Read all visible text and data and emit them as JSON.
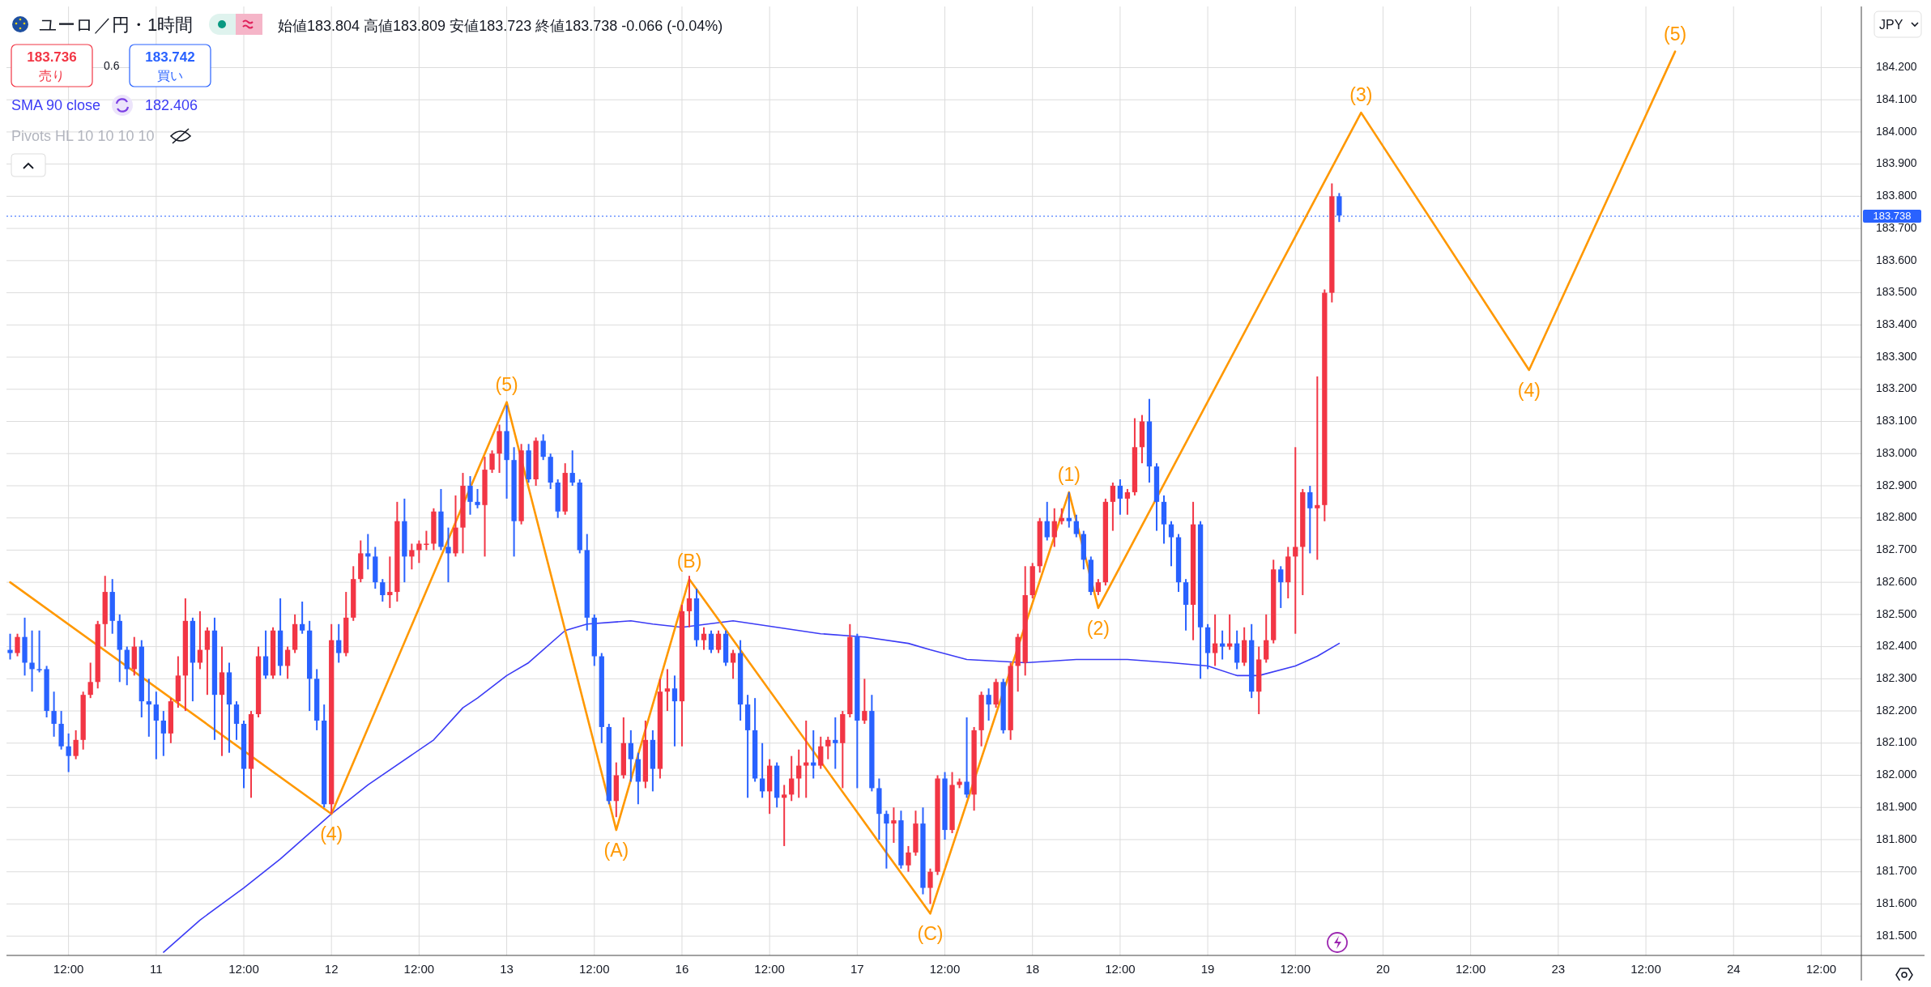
{
  "chart_data": {
    "type": "candlestick",
    "title": "ユーロ／円・1時間",
    "subtitle": "始値183.804 高値183.809 安値183.723 終値183.738 -0.066 (-0.04%)",
    "categories": [
      null,
      null,
      null,
      null,
      null,
      null,
      null,
      null,
      "12:00",
      null,
      null,
      null,
      null,
      null,
      null,
      null,
      null,
      null,
      null,
      null,
      "11",
      null,
      null,
      null,
      null,
      null,
      null,
      null,
      null,
      null,
      null,
      null,
      "12:00",
      null,
      null,
      null,
      null,
      null,
      null,
      null,
      null,
      null,
      null,
      null,
      "12",
      null,
      null,
      null,
      null,
      null,
      null,
      null,
      null,
      null,
      null,
      null,
      "12:00",
      null,
      null,
      null,
      null,
      null,
      null,
      null,
      null,
      null,
      null,
      null,
      "13",
      null,
      null,
      null,
      null,
      null,
      null,
      null,
      null,
      null,
      null,
      null,
      "12:00",
      null,
      null,
      null,
      null,
      null,
      null,
      null,
      null,
      null,
      null,
      null,
      "16",
      null,
      null,
      null,
      null,
      null,
      null,
      null,
      null,
      null,
      null,
      null,
      "12:00",
      null,
      null,
      null,
      null,
      null,
      null,
      null,
      null,
      null,
      null,
      null,
      "17",
      null,
      null,
      null,
      null,
      null,
      null,
      null,
      null,
      null,
      null,
      null,
      "12:00",
      null,
      null,
      null,
      null,
      null,
      null,
      null,
      null,
      null,
      null,
      null,
      "18",
      null,
      null,
      null,
      null,
      null,
      null,
      null,
      null,
      null,
      null,
      null,
      "12:00",
      null,
      null,
      null,
      null,
      null,
      null,
      null,
      null,
      null,
      null,
      null,
      "19",
      null,
      null,
      null,
      null,
      null,
      null,
      null,
      null,
      null,
      null,
      null,
      "12:00",
      null,
      null,
      null,
      null,
      null,
      null,
      null,
      null,
      null,
      null,
      null,
      "20",
      null,
      null,
      null,
      null,
      null,
      null,
      null,
      null,
      null,
      null,
      null,
      "12:00",
      null,
      null,
      null,
      null,
      null,
      null,
      null,
      null,
      null,
      null,
      null,
      "23",
      null,
      null,
      null,
      null,
      null,
      null,
      null,
      null,
      null,
      null,
      null,
      "12:00",
      null,
      null,
      null,
      null,
      null,
      null,
      null,
      null,
      null,
      null,
      null,
      "24",
      null,
      null,
      null,
      null,
      null,
      null,
      null,
      null,
      null,
      null,
      null,
      "12:00",
      null,
      null,
      null,
      null,
      null
    ],
    "ohlc": [
      [
        182.39,
        182.44,
        182.36,
        182.38
      ],
      [
        182.38,
        182.44,
        182.37,
        182.43
      ],
      [
        182.43,
        182.49,
        182.31,
        182.35
      ],
      [
        182.35,
        182.45,
        182.26,
        182.33
      ],
      [
        182.33,
        182.45,
        182.32,
        182.33
      ],
      [
        182.33,
        182.34,
        182.18,
        182.2
      ],
      [
        182.2,
        182.26,
        182.12,
        182.16
      ],
      [
        182.16,
        182.2,
        182.08,
        182.09
      ],
      [
        182.09,
        182.13,
        182.01,
        182.06
      ],
      [
        182.06,
        182.14,
        182.05,
        182.11
      ],
      [
        182.11,
        182.26,
        182.08,
        182.25
      ],
      [
        182.25,
        182.35,
        182.24,
        182.29
      ],
      [
        182.29,
        182.48,
        182.27,
        182.47
      ],
      [
        182.47,
        182.62,
        182.4,
        182.57
      ],
      [
        182.57,
        182.61,
        182.44,
        182.48
      ],
      [
        182.48,
        182.5,
        182.29,
        182.39
      ],
      [
        182.39,
        182.4,
        182.28,
        182.33
      ],
      [
        182.33,
        182.43,
        182.31,
        182.4
      ],
      [
        182.4,
        182.42,
        182.18,
        182.23
      ],
      [
        182.23,
        182.3,
        182.12,
        182.22
      ],
      [
        182.22,
        182.26,
        182.05,
        182.17
      ],
      [
        182.17,
        182.2,
        182.06,
        182.13
      ],
      [
        182.13,
        182.24,
        182.1,
        182.23
      ],
      [
        182.23,
        182.37,
        182.21,
        182.31
      ],
      [
        182.31,
        182.55,
        182.2,
        182.48
      ],
      [
        182.48,
        182.49,
        182.23,
        182.35
      ],
      [
        182.35,
        182.51,
        182.33,
        182.39
      ],
      [
        182.39,
        182.46,
        182.25,
        182.45
      ],
      [
        182.45,
        182.49,
        182.11,
        182.25
      ],
      [
        182.25,
        182.4,
        182.06,
        182.32
      ],
      [
        182.32,
        182.35,
        182.07,
        182.22
      ],
      [
        182.22,
        182.23,
        182.11,
        182.16
      ],
      [
        182.16,
        182.17,
        181.96,
        182.02
      ],
      [
        182.02,
        182.2,
        181.93,
        182.19
      ],
      [
        182.19,
        182.4,
        182.18,
        182.37
      ],
      [
        182.37,
        182.45,
        182.3,
        182.31
      ],
      [
        182.31,
        182.46,
        182.3,
        182.45
      ],
      [
        182.45,
        182.55,
        182.31,
        182.34
      ],
      [
        182.34,
        182.4,
        182.3,
        182.39
      ],
      [
        182.39,
        182.5,
        182.38,
        182.47
      ],
      [
        182.47,
        182.54,
        182.44,
        182.45
      ],
      [
        182.45,
        182.48,
        182.2,
        182.3
      ],
      [
        182.3,
        182.33,
        182.14,
        182.17
      ],
      [
        182.17,
        182.22,
        181.9,
        181.91
      ],
      [
        181.91,
        182.47,
        181.88,
        182.42
      ],
      [
        182.42,
        182.47,
        182.35,
        182.38
      ],
      [
        182.38,
        182.57,
        182.37,
        182.49
      ],
      [
        182.49,
        182.65,
        182.48,
        182.61
      ],
      [
        182.61,
        182.73,
        182.6,
        182.69
      ],
      [
        182.69,
        182.75,
        182.64,
        182.68
      ],
      [
        182.68,
        182.71,
        182.58,
        182.6
      ],
      [
        182.6,
        182.61,
        182.54,
        182.56
      ],
      [
        182.56,
        182.68,
        182.52,
        182.57
      ],
      [
        182.57,
        182.85,
        182.54,
        182.79
      ],
      [
        182.79,
        182.86,
        182.6,
        182.68
      ],
      [
        182.68,
        182.72,
        182.64,
        182.7
      ],
      [
        182.7,
        182.73,
        182.66,
        182.72
      ],
      [
        182.72,
        182.76,
        182.7,
        182.72
      ],
      [
        182.72,
        182.83,
        182.7,
        182.82
      ],
      [
        182.82,
        182.89,
        182.7,
        182.71
      ],
      [
        182.71,
        182.77,
        182.6,
        182.69
      ],
      [
        182.69,
        182.87,
        182.68,
        182.77
      ],
      [
        182.77,
        182.94,
        182.69,
        182.9
      ],
      [
        182.9,
        182.93,
        182.81,
        182.85
      ],
      [
        182.85,
        182.89,
        182.83,
        182.84
      ],
      [
        182.84,
        182.99,
        182.68,
        182.95
      ],
      [
        182.95,
        183.01,
        182.94,
        183.0
      ],
      [
        183.0,
        183.09,
        182.94,
        183.07
      ],
      [
        183.07,
        183.15,
        182.86,
        182.98
      ],
      [
        182.98,
        183.02,
        182.68,
        182.79
      ],
      [
        182.79,
        183.03,
        182.78,
        183.01
      ],
      [
        183.01,
        183.03,
        182.91,
        182.92
      ],
      [
        182.92,
        183.05,
        182.9,
        183.04
      ],
      [
        183.04,
        183.06,
        182.98,
        182.99
      ],
      [
        182.99,
        183.0,
        182.89,
        182.91
      ],
      [
        182.91,
        182.92,
        182.8,
        182.82
      ],
      [
        182.82,
        182.97,
        182.81,
        182.94
      ],
      [
        182.94,
        183.01,
        182.9,
        182.91
      ],
      [
        182.91,
        182.92,
        182.69,
        182.7
      ],
      [
        182.7,
        182.75,
        182.45,
        182.49
      ],
      [
        182.49,
        182.5,
        182.34,
        182.37
      ],
      [
        182.37,
        182.38,
        182.1,
        182.15
      ],
      [
        182.15,
        182.16,
        181.91,
        181.92
      ],
      [
        181.92,
        182.04,
        181.87,
        182.0
      ],
      [
        182.0,
        182.18,
        181.99,
        182.1
      ],
      [
        182.1,
        182.14,
        181.98,
        182.05
      ],
      [
        182.05,
        182.07,
        181.91,
        181.98
      ],
      [
        181.98,
        182.17,
        181.96,
        182.11
      ],
      [
        182.11,
        182.14,
        181.95,
        182.02
      ],
      [
        182.02,
        182.3,
        181.99,
        182.26
      ],
      [
        182.26,
        182.33,
        182.2,
        182.27
      ],
      [
        182.27,
        182.31,
        182.09,
        182.23
      ],
      [
        182.23,
        182.53,
        182.09,
        182.51
      ],
      [
        182.51,
        182.62,
        182.46,
        182.55
      ],
      [
        182.55,
        182.58,
        182.4,
        182.42
      ],
      [
        182.42,
        182.46,
        182.39,
        182.44
      ],
      [
        182.44,
        182.45,
        182.38,
        182.39
      ],
      [
        182.39,
        182.45,
        182.38,
        182.44
      ],
      [
        182.44,
        182.45,
        182.34,
        182.35
      ],
      [
        182.35,
        182.39,
        182.3,
        182.38
      ],
      [
        182.38,
        182.42,
        182.17,
        182.22
      ],
      [
        182.22,
        182.25,
        181.93,
        182.14
      ],
      [
        182.14,
        182.24,
        181.98,
        181.99
      ],
      [
        181.99,
        182.1,
        181.93,
        181.95
      ],
      [
        181.95,
        182.05,
        181.88,
        182.03
      ],
      [
        182.03,
        182.04,
        181.9,
        181.93
      ],
      [
        181.93,
        181.97,
        181.78,
        181.94
      ],
      [
        181.94,
        182.06,
        181.92,
        181.99
      ],
      [
        181.99,
        182.08,
        181.93,
        182.03
      ],
      [
        182.03,
        182.17,
        181.93,
        182.04
      ],
      [
        182.04,
        182.14,
        181.99,
        182.03
      ],
      [
        182.03,
        182.12,
        182.02,
        182.09
      ],
      [
        182.09,
        182.12,
        182.05,
        182.11
      ],
      [
        182.11,
        182.18,
        182.02,
        182.1
      ],
      [
        182.1,
        182.2,
        181.96,
        182.19
      ],
      [
        182.19,
        182.47,
        182.18,
        182.43
      ],
      [
        182.43,
        182.44,
        181.96,
        182.17
      ],
      [
        182.17,
        182.3,
        182.16,
        182.2
      ],
      [
        182.2,
        182.25,
        181.95,
        181.96
      ],
      [
        181.96,
        181.99,
        181.8,
        181.88
      ],
      [
        181.88,
        181.89,
        181.71,
        181.85
      ],
      [
        181.85,
        181.9,
        181.79,
        181.86
      ],
      [
        181.86,
        181.89,
        181.71,
        181.72
      ],
      [
        181.72,
        181.78,
        181.7,
        181.76
      ],
      [
        181.76,
        181.89,
        181.75,
        181.85
      ],
      [
        181.85,
        181.9,
        181.63,
        181.65
      ],
      [
        181.65,
        181.71,
        181.6,
        181.7
      ],
      [
        181.7,
        182.0,
        181.69,
        181.99
      ],
      [
        181.99,
        182.01,
        181.8,
        181.83
      ],
      [
        181.83,
        182.01,
        181.82,
        181.97
      ],
      [
        181.97,
        181.99,
        181.96,
        181.98
      ],
      [
        181.98,
        182.18,
        181.93,
        181.94
      ],
      [
        181.94,
        182.15,
        181.89,
        182.14
      ],
      [
        182.14,
        182.26,
        182.09,
        182.25
      ],
      [
        182.25,
        182.27,
        182.17,
        182.22
      ],
      [
        182.22,
        182.3,
        182.21,
        182.29
      ],
      [
        182.29,
        182.3,
        182.13,
        182.14
      ],
      [
        182.14,
        182.35,
        182.11,
        182.34
      ],
      [
        182.34,
        182.44,
        182.26,
        182.43
      ],
      [
        182.35,
        182.65,
        182.31,
        182.56
      ],
      [
        182.56,
        182.66,
        182.55,
        182.65
      ],
      [
        182.65,
        182.8,
        182.63,
        182.79
      ],
      [
        182.79,
        182.85,
        182.73,
        182.74
      ],
      [
        182.74,
        182.83,
        182.71,
        182.79
      ],
      [
        182.79,
        182.83,
        182.78,
        182.8
      ],
      [
        182.8,
        182.88,
        182.77,
        182.79
      ],
      [
        182.79,
        182.81,
        182.74,
        182.75
      ],
      [
        182.75,
        182.76,
        182.64,
        182.67
      ],
      [
        182.67,
        182.68,
        182.56,
        182.57
      ],
      [
        182.57,
        182.61,
        182.56,
        182.6
      ],
      [
        182.6,
        182.86,
        182.59,
        182.85
      ],
      [
        182.85,
        182.91,
        182.76,
        182.9
      ],
      [
        182.9,
        182.92,
        182.81,
        182.86
      ],
      [
        182.86,
        182.89,
        182.81,
        182.88
      ],
      [
        182.88,
        183.11,
        182.87,
        183.02
      ],
      [
        183.02,
        183.12,
        182.97,
        183.1
      ],
      [
        183.1,
        183.17,
        182.91,
        182.96
      ],
      [
        182.96,
        182.97,
        182.76,
        182.85
      ],
      [
        182.85,
        182.87,
        182.72,
        182.78
      ],
      [
        182.78,
        182.79,
        182.65,
        182.74
      ],
      [
        182.74,
        182.75,
        182.57,
        182.6
      ],
      [
        182.6,
        182.61,
        182.45,
        182.53
      ],
      [
        182.53,
        182.85,
        182.42,
        182.78
      ],
      [
        182.78,
        182.79,
        182.3,
        182.46
      ],
      [
        182.46,
        182.47,
        182.33,
        182.38
      ],
      [
        182.38,
        182.5,
        182.34,
        182.41
      ],
      [
        182.41,
        182.45,
        182.36,
        182.4
      ],
      [
        182.4,
        182.5,
        182.39,
        182.41
      ],
      [
        182.41,
        182.45,
        182.33,
        182.35
      ],
      [
        182.35,
        182.46,
        182.34,
        182.42
      ],
      [
        182.42,
        182.47,
        182.24,
        182.26
      ],
      [
        182.26,
        182.4,
        182.19,
        182.36
      ],
      [
        182.36,
        182.5,
        182.35,
        182.42
      ],
      [
        182.42,
        182.67,
        182.41,
        182.64
      ],
      [
        182.64,
        182.65,
        182.52,
        182.6
      ],
      [
        182.6,
        182.71,
        182.55,
        182.68
      ],
      [
        182.68,
        183.02,
        182.44,
        182.71
      ],
      [
        182.71,
        182.89,
        182.56,
        182.88
      ],
      [
        182.88,
        182.9,
        182.69,
        182.83
      ],
      [
        182.83,
        183.24,
        182.67,
        182.84
      ],
      [
        182.84,
        183.51,
        182.79,
        183.5
      ],
      [
        183.5,
        183.84,
        183.47,
        183.8
      ],
      [
        183.8,
        183.81,
        183.72,
        183.74
      ],
      null,
      null,
      null,
      null,
      null,
      null,
      null,
      null,
      null,
      null,
      null,
      null,
      null,
      null,
      null,
      null,
      null,
      null,
      null,
      null,
      null,
      null,
      null,
      null,
      null,
      null,
      null,
      null,
      null,
      null,
      null,
      null,
      null,
      null,
      null,
      null,
      null,
      null,
      null,
      null,
      null,
      null,
      null,
      null,
      null,
      null,
      null,
      null,
      null,
      null,
      null,
      null,
      null,
      null,
      null,
      null,
      null,
      null,
      null,
      null,
      null,
      null,
      null,
      null,
      null,
      null,
      null,
      null,
      null,
      null,
      null
    ],
    "colors": [
      "#2962ff",
      "#f23645",
      "#2962ff",
      "#2962ff",
      "#2962ff",
      "#2962ff",
      "#2962ff",
      "#2962ff",
      "#2962ff",
      "#f23645",
      "#f23645",
      "#f23645",
      "#f23645",
      "#f23645",
      "#2962ff",
      "#2962ff",
      "#2962ff",
      "#f23645",
      "#2962ff",
      "#2962ff",
      "#2962ff",
      "#2962ff",
      "#f23645",
      "#f23645",
      "#f23645",
      "#2962ff",
      "#f23645",
      "#f23645",
      "#2962ff",
      "#f23645",
      "#2962ff",
      "#2962ff",
      "#2962ff",
      "#f23645",
      "#f23645",
      "#2962ff",
      "#f23645",
      "#2962ff",
      "#f23645",
      "#f23645",
      "#2962ff",
      "#2962ff",
      "#2962ff",
      "#2962ff",
      "#f23645",
      "#2962ff",
      "#f23645",
      "#f23645",
      "#f23645",
      "#2962ff",
      "#2962ff",
      "#2962ff",
      "#f23645",
      "#f23645",
      "#2962ff",
      "#f23645",
      "#f23645",
      "#f23645",
      "#f23645",
      "#2962ff",
      "#2962ff",
      "#f23645",
      "#f23645",
      "#2962ff",
      "#2962ff",
      "#f23645",
      "#f23645",
      "#f23645",
      "#2962ff",
      "#2962ff",
      "#f23645",
      "#2962ff",
      "#f23645",
      "#2962ff",
      "#2962ff",
      "#2962ff",
      "#f23645",
      "#2962ff",
      "#2962ff",
      "#2962ff",
      "#2962ff",
      "#2962ff",
      "#2962ff",
      "#f23645",
      "#f23645",
      "#2962ff",
      "#2962ff",
      "#f23645",
      "#2962ff",
      "#f23645",
      "#f23645",
      "#2962ff",
      "#f23645",
      "#f23645",
      "#2962ff",
      "#f23645",
      "#2962ff",
      "#f23645",
      "#2962ff",
      "#f23645",
      "#2962ff",
      "#2962ff",
      "#2962ff",
      "#2962ff",
      "#f23645",
      "#2962ff",
      "#f23645",
      "#f23645",
      "#f23645",
      "#f23645",
      "#2962ff",
      "#f23645",
      "#f23645",
      "#2962ff",
      "#f23645",
      "#f23645",
      "#2962ff",
      "#f23645",
      "#2962ff",
      "#2962ff",
      "#2962ff",
      "#f23645",
      "#2962ff",
      "#f23645",
      "#f23645",
      "#2962ff",
      "#f23645",
      "#f23645",
      "#2962ff",
      "#f23645",
      "#f23645",
      "#2962ff",
      "#f23645",
      "#f23645",
      "#2962ff",
      "#f23645",
      "#2962ff",
      "#f23645",
      "#f23645",
      "#f23645",
      "#f23645",
      "#f23645",
      "#2962ff",
      "#f23645",
      "#f23645",
      "#2962ff",
      "#2962ff",
      "#2962ff",
      "#2962ff",
      "#f23645",
      "#f23645",
      "#f23645",
      "#2962ff",
      "#f23645",
      "#f23645",
      "#f23645",
      "#2962ff",
      "#2962ff",
      "#2962ff",
      "#2962ff",
      "#2962ff",
      "#2962ff",
      "#f23645",
      "#2962ff",
      "#2962ff",
      "#f23645",
      "#2962ff",
      "#f23645",
      "#2962ff",
      "#f23645",
      "#2962ff",
      "#f23645",
      "#f23645",
      "#f23645",
      "#2962ff",
      "#f23645",
      "#f23645",
      "#f23645",
      "#2962ff",
      "#f23645",
      "#f23645",
      "#f23645",
      "#2962ff",
      null,
      null,
      null,
      null,
      null,
      null,
      null,
      null,
      null,
      null,
      null,
      null,
      null,
      null,
      null,
      null,
      null,
      null,
      null,
      null,
      null,
      null,
      null,
      null,
      null,
      null,
      null,
      null,
      null,
      null,
      null,
      null,
      null,
      null,
      null,
      null,
      null,
      null,
      null,
      null,
      null,
      null,
      null,
      null,
      null,
      null,
      null,
      null,
      null,
      null,
      null,
      null,
      null,
      null,
      null,
      null,
      null,
      null,
      null,
      null,
      null,
      null,
      null,
      null,
      null,
      null,
      null,
      null,
      null,
      null,
      null
    ],
    "series": [
      {
        "name": "SMA 90 close",
        "type": "line",
        "color": "#3b3bf5",
        "values": [
          null,
          null,
          null,
          null,
          null,
          null,
          null,
          null,
          null,
          null,
          null,
          null,
          null,
          null,
          null,
          null,
          null,
          null,
          null,
          null,
          null,
          181.45,
          null,
          null,
          null,
          null,
          181.55,
          null,
          null,
          null,
          null,
          null,
          181.65,
          null,
          null,
          null,
          null,
          181.74,
          null,
          null,
          null,
          null,
          null,
          null,
          181.88,
          null,
          null,
          null,
          null,
          181.97,
          null,
          null,
          null,
          null,
          null,
          null,
          null,
          null,
          182.11,
          null,
          null,
          null,
          182.21,
          null,
          182.24,
          null,
          null,
          null,
          182.31,
          null,
          null,
          182.35,
          null,
          null,
          null,
          null,
          182.45,
          null,
          null,
          182.47,
          null,
          null,
          null,
          null,
          null,
          182.48,
          null,
          null,
          182.47,
          null,
          null,
          null,
          182.46,
          null,
          null,
          null,
          null,
          null,
          null,
          182.48,
          null,
          null,
          null,
          null,
          null,
          182.46,
          null,
          null,
          null,
          null,
          null,
          182.44,
          null,
          null,
          null,
          null,
          null,
          182.43,
          null,
          null,
          null,
          null,
          null,
          182.41,
          null,
          null,
          182.39,
          null,
          null,
          null,
          null,
          182.36,
          null,
          null,
          null,
          null,
          null,
          null,
          null,
          182.35,
          null,
          null,
          null,
          null,
          null,
          null,
          182.36,
          null,
          null,
          null,
          null,
          null,
          null,
          182.36,
          null,
          null,
          null,
          null,
          null,
          182.35,
          null,
          null,
          null,
          null,
          182.34,
          null,
          null,
          null,
          182.31,
          null,
          null,
          182.31,
          null,
          null,
          null,
          null,
          182.34,
          null,
          null,
          182.37,
          null,
          null,
          182.41,
          null,
          null,
          null,
          null,
          null,
          null,
          null,
          null,
          null,
          null,
          null,
          null,
          null,
          null,
          null,
          null,
          null,
          null,
          null,
          null,
          null,
          null,
          null,
          null,
          null,
          null,
          null,
          null,
          null,
          null,
          null,
          null,
          null,
          null,
          null,
          null,
          null,
          null,
          null,
          null,
          null,
          null,
          null,
          null,
          null,
          null,
          null,
          null,
          null,
          null,
          null,
          null,
          null,
          null,
          null,
          null,
          null,
          null,
          null,
          null,
          null,
          null,
          null,
          null,
          null,
          null,
          null,
          null,
          null,
          null,
          null
        ]
      },
      {
        "type": "line",
        "color": "#ff9800",
        "values": [
          182.6,
          null,
          null,
          null,
          null,
          null,
          null,
          null,
          null,
          null,
          null,
          null,
          null,
          null,
          null,
          null,
          null,
          null,
          null,
          null,
          null,
          null,
          null,
          null,
          null,
          null,
          null,
          null,
          null,
          null,
          null,
          null,
          null,
          null,
          null,
          null,
          null,
          null,
          null,
          null,
          null,
          null,
          null,
          null,
          181.88,
          null,
          null,
          null,
          null,
          null,
          null,
          null,
          null,
          null,
          null,
          null,
          null,
          null,
          null,
          null,
          null,
          null,
          null,
          null,
          null,
          null,
          null,
          null,
          183.16,
          null,
          null,
          null,
          null,
          null,
          null,
          null,
          null,
          null,
          null,
          null,
          null,
          null,
          null,
          181.83,
          null,
          null,
          null,
          null,
          null,
          null,
          null,
          null,
          null,
          182.61,
          null,
          null,
          null,
          null,
          null,
          null,
          null,
          null,
          null,
          null,
          null,
          null,
          null,
          null,
          null,
          null,
          null,
          null,
          null,
          null,
          null,
          null,
          null,
          null,
          null,
          null,
          null,
          null,
          null,
          null,
          null,
          null,
          181.57,
          null,
          null,
          null,
          null,
          null,
          null,
          null,
          null,
          null,
          null,
          null,
          null,
          null,
          null,
          null,
          null,
          null,
          null,
          182.88,
          null,
          null,
          null,
          182.52,
          null,
          null,
          null,
          null,
          null,
          null,
          null,
          null,
          null,
          null,
          null,
          null,
          null,
          null,
          null,
          null,
          null,
          null,
          null,
          null,
          null,
          null,
          null,
          null,
          null,
          null,
          null,
          null,
          null,
          null,
          null,
          null,
          null,
          null,
          null,
          184.06,
          null,
          null,
          null,
          null,
          null,
          null,
          null,
          null,
          null,
          null,
          null,
          null,
          null,
          null,
          null,
          null,
          null,
          null,
          null,
          null,
          null,
          null,
          183.26,
          null,
          null,
          null,
          null,
          null,
          null,
          null,
          null,
          null,
          null,
          null,
          null,
          null,
          null,
          null,
          null,
          null,
          null,
          null,
          184.25,
          null,
          null,
          null,
          null,
          null,
          null,
          null,
          null,
          null,
          null,
          null,
          null,
          null,
          null,
          null,
          null,
          null,
          null,
          null,
          null,
          null,
          null,
          null,
          null,
          null
        ]
      }
    ],
    "ylim": [
      181.44,
      184.39
    ],
    "yticks": [
      {
        "value": 181.5,
        "label": "181.500"
      },
      {
        "value": 181.6,
        "label": "181.600"
      },
      {
        "value": 181.7,
        "label": "181.700"
      },
      {
        "value": 181.8,
        "label": "181.800"
      },
      {
        "value": 181.9,
        "label": "181.900"
      },
      {
        "value": 182.0,
        "label": "182.000"
      },
      {
        "value": 182.1,
        "label": "182.100"
      },
      {
        "value": 182.2,
        "label": "182.200"
      },
      {
        "value": 182.3,
        "label": "182.300"
      },
      {
        "value": 182.4,
        "label": "182.400"
      },
      {
        "value": 182.5,
        "label": "182.500"
      },
      {
        "value": 182.6,
        "label": "182.600"
      },
      {
        "value": 182.7,
        "label": "182.700"
      },
      {
        "value": 182.8,
        "label": "182.800"
      },
      {
        "value": 182.9,
        "label": "182.900"
      },
      {
        "value": 183.0,
        "label": "183.000"
      },
      {
        "value": 183.1,
        "label": "183.100"
      },
      {
        "value": 183.2,
        "label": "183.200"
      },
      {
        "value": 183.3,
        "label": "183.300"
      },
      {
        "value": 183.4,
        "label": "183.400"
      },
      {
        "value": 183.5,
        "label": "183.500"
      },
      {
        "value": 183.6,
        "label": "183.600"
      },
      {
        "value": 183.7,
        "label": "183.700"
      },
      {
        "value": 183.8,
        "label": "183.800"
      },
      {
        "value": 183.9,
        "label": "183.900"
      },
      {
        "value": 184.0,
        "label": "184.000"
      },
      {
        "value": 184.1,
        "label": "184.100"
      },
      {
        "value": 184.2,
        "label": "184.200"
      }
    ],
    "grid": true,
    "ref_lines": [
      {
        "axis": "y",
        "value": 183.738,
        "label": "183.738",
        "color": "#2962ff",
        "line_style": "dotted"
      }
    ],
    "annotations": [
      "183.736",
      "売り",
      "0.6",
      "183.742",
      "買い",
      "182.406",
      "Pivots HL 10 10 10 10",
      "JPY",
      {
        "text": "(4)",
        "y": 181.88
      },
      {
        "text": "(5)",
        "y": 183.16
      },
      {
        "text": "(A)",
        "y": 181.83
      },
      {
        "text": "(B)",
        "y": 182.61
      },
      {
        "text": "(C)",
        "y": 181.57
      },
      {
        "text": "(1)",
        "y": 182.88
      },
      {
        "text": "(2)",
        "y": 182.52
      },
      {
        "text": "(3)",
        "y": 184.06
      },
      {
        "text": "(4)",
        "y": 183.26
      },
      {
        "text": "(5)",
        "y": 184.25
      }
    ]
  }
}
